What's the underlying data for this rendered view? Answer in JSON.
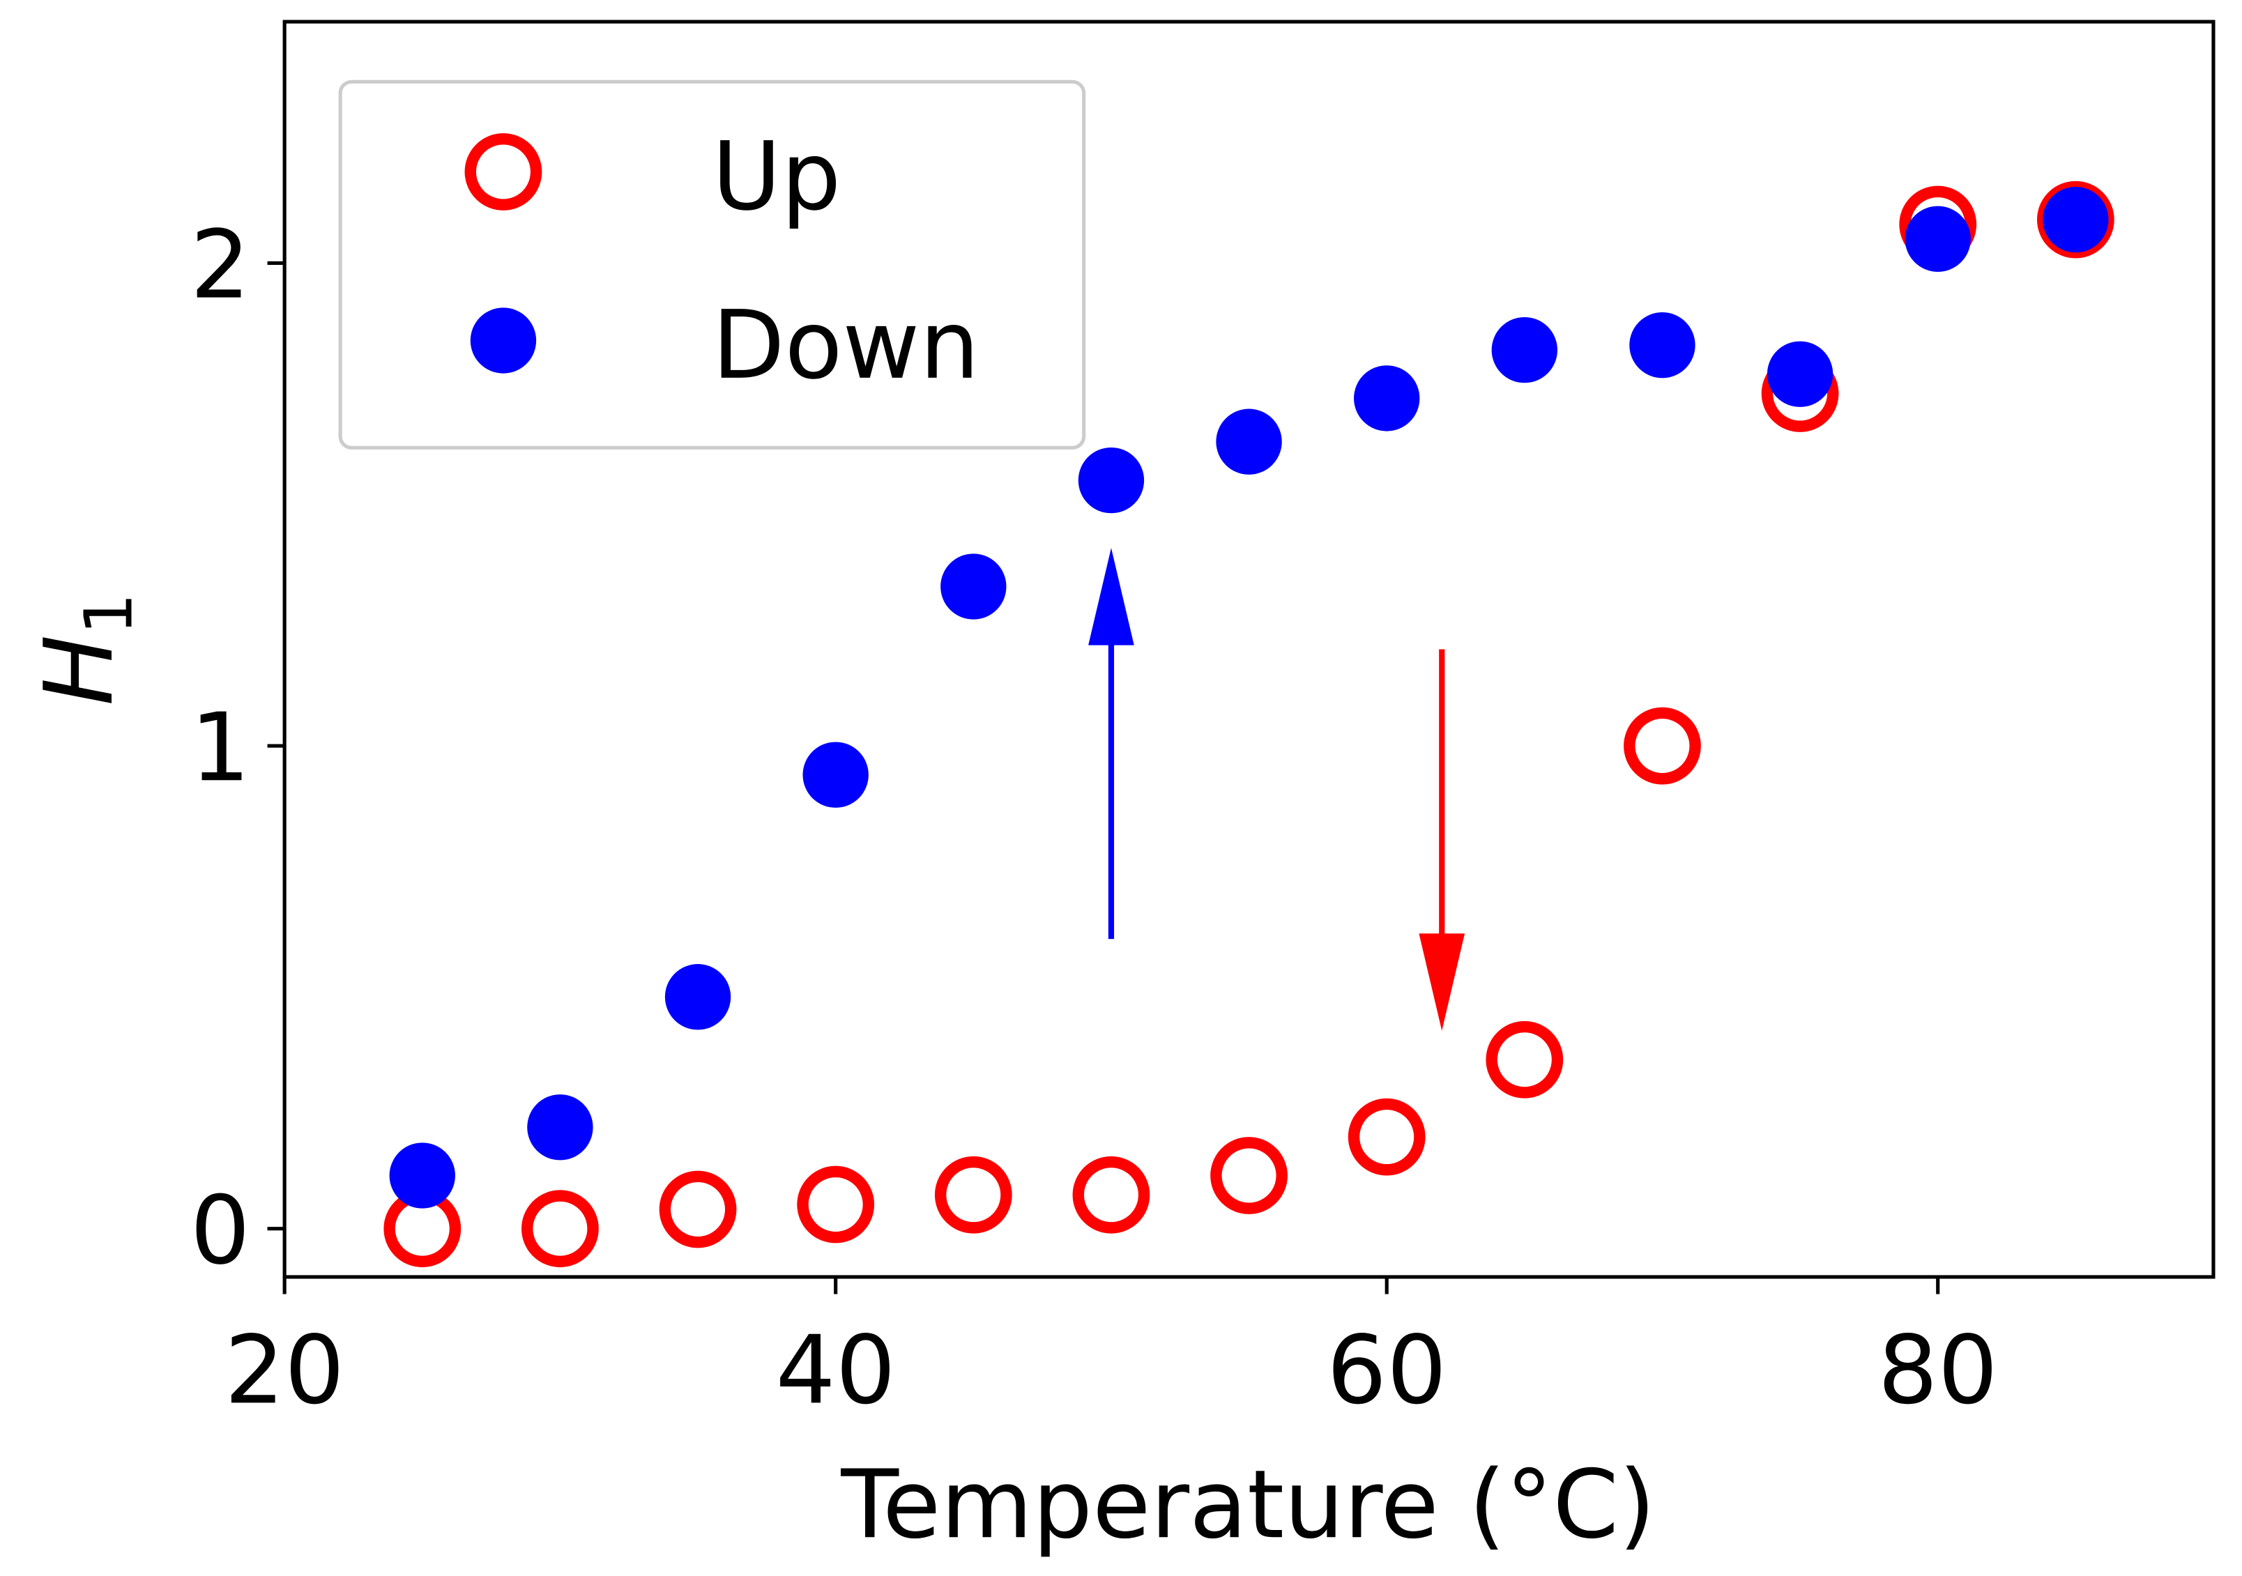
{
  "chart_data": {
    "type": "scatter",
    "title": "",
    "xlabel": "Temperature (°C)",
    "ylabel_main": "H",
    "ylabel_sub": "1",
    "xlim": [
      20,
      90
    ],
    "ylim": [
      -0.1,
      2.5
    ],
    "x_ticks": [
      20,
      40,
      60,
      80
    ],
    "y_ticks": [
      0,
      1,
      2
    ],
    "x_tick_labels": [
      "20",
      "40",
      "60",
      "80"
    ],
    "y_tick_labels": [
      "0",
      "1",
      "2"
    ],
    "grid": false,
    "legend": {
      "placement": "top-left",
      "entries": [
        "Up",
        "Down"
      ]
    },
    "series": [
      {
        "name": "Up",
        "marker": "open-circle",
        "color": "#ff0000",
        "x": [
          25,
          30,
          35,
          40,
          45,
          50,
          55,
          60,
          65,
          70,
          75,
          80,
          85
        ],
        "y": [
          0.0,
          0.0,
          0.04,
          0.05,
          0.07,
          0.07,
          0.11,
          0.19,
          0.35,
          1.0,
          1.73,
          2.08,
          2.09
        ]
      },
      {
        "name": "Down",
        "marker": "filled-circle",
        "color": "#0000ff",
        "x": [
          25,
          30,
          35,
          40,
          45,
          50,
          55,
          60,
          65,
          70,
          75,
          80,
          85
        ],
        "y": [
          0.11,
          0.21,
          0.48,
          0.94,
          1.33,
          1.55,
          1.63,
          1.72,
          1.82,
          1.83,
          1.77,
          2.05,
          2.09
        ]
      }
    ],
    "annotations": [
      {
        "type": "arrow",
        "color": "#0000ff",
        "x": 50,
        "from_y": 0.6,
        "to_y": 1.41
      },
      {
        "type": "arrow",
        "color": "#ff0000",
        "x": 62,
        "from_y": 1.2,
        "to_y": 0.41
      }
    ]
  }
}
